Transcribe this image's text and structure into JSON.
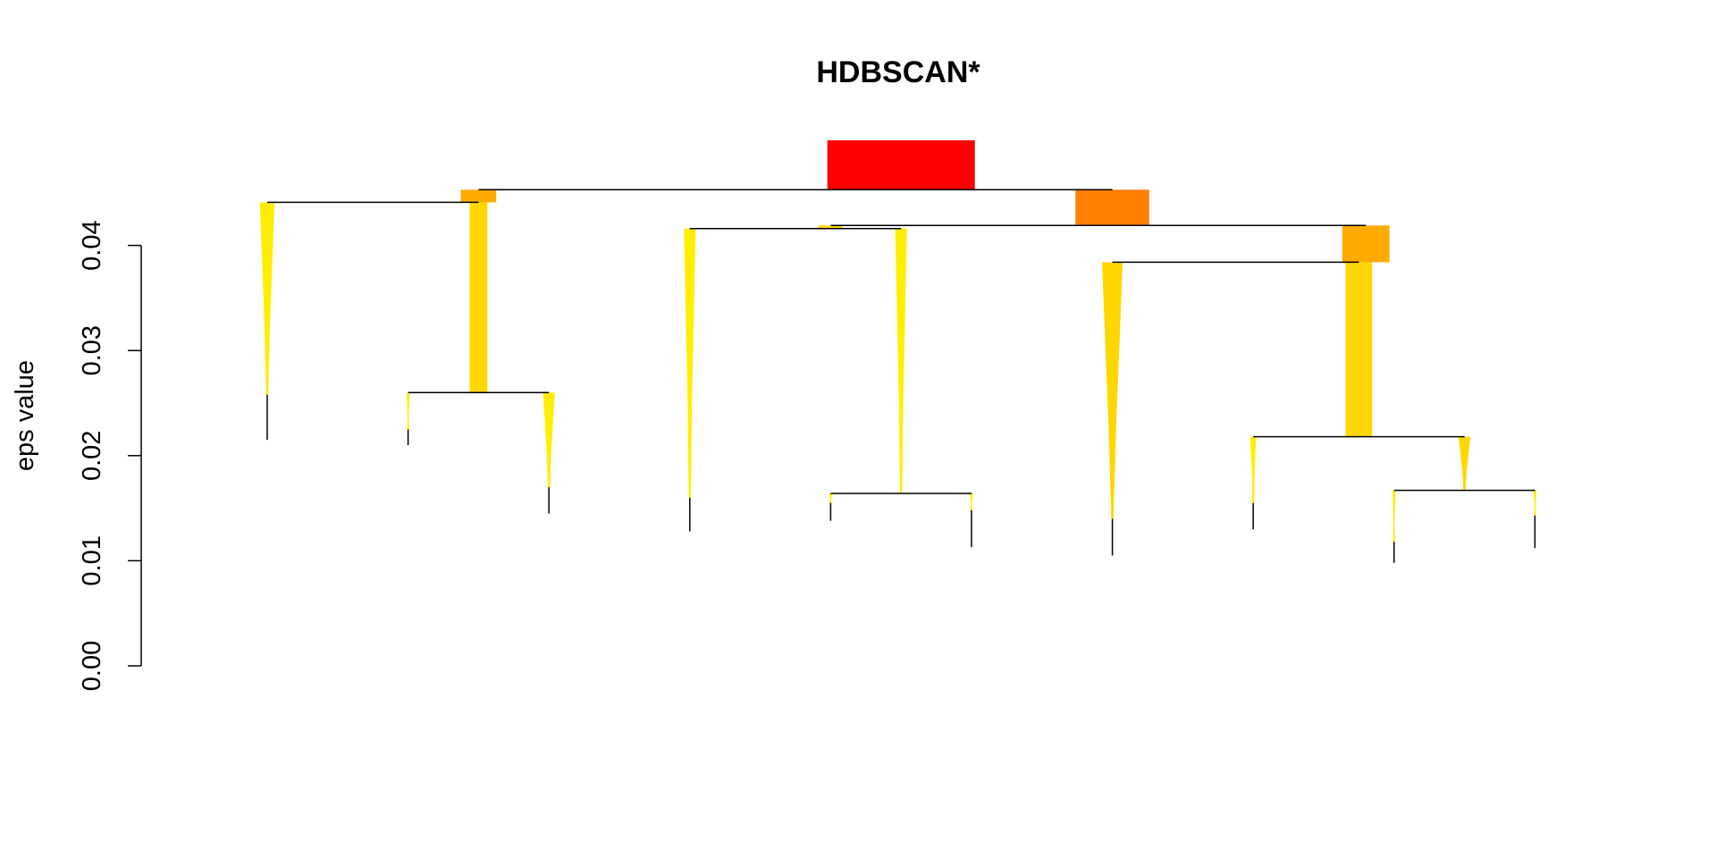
{
  "chart_data": {
    "type": "dendrogram",
    "title": "HDBSCAN*",
    "ylabel": "eps value",
    "ylim": [
      0,
      0.05
    ],
    "y_ticks": [
      "0.00",
      "0.01",
      "0.02",
      "0.03",
      "0.04"
    ],
    "y_tick_values": [
      0,
      0.01,
      0.02,
      0.03,
      0.04
    ],
    "grid": false,
    "colors": {
      "root": "#ff0000",
      "level1": "#ff8000",
      "level2": "#ffaa00",
      "leaf": "#ffd700",
      "leaf_light": "#ffee00",
      "line": "#000000"
    },
    "clusters": [
      {
        "id": "root",
        "x": 4.5,
        "eps_top": 0.05,
        "eps_split": 0.0453,
        "width": 0.5,
        "color": "#ff0000"
      },
      {
        "id": "A",
        "x": 1.5,
        "eps_top": 0.0453,
        "eps_split": 0.0441,
        "width": 0.12,
        "color": "#ffaa00"
      },
      {
        "id": "B",
        "x": 6.0,
        "eps_top": 0.0453,
        "eps_split": 0.0419,
        "width": 0.25,
        "color": "#ff8000"
      },
      {
        "id": "A1",
        "x": 0.0,
        "eps_top": 0.0441,
        "eps_split": 0.0258,
        "eps_end": 0.0215,
        "width": 0.05,
        "color": "#ffee00",
        "taper": true
      },
      {
        "id": "A2",
        "x": 1.5,
        "eps_top": 0.0441,
        "eps_split": 0.026,
        "width": 0.06,
        "color": "#ffd700"
      },
      {
        "id": "A2a",
        "x": 1.0,
        "eps_top": 0.026,
        "eps_split": 0.0225,
        "eps_end": 0.021,
        "width": 0.01,
        "color": "#ffee00",
        "taper": true
      },
      {
        "id": "A2b",
        "x": 2.0,
        "eps_top": 0.026,
        "eps_split": 0.017,
        "eps_end": 0.0145,
        "width": 0.04,
        "color": "#ffee00",
        "taper": true
      },
      {
        "id": "B1",
        "x": 4.0,
        "eps_top": 0.0419,
        "eps_split": 0.0416,
        "width": 0.08,
        "color": "#ffd700"
      },
      {
        "id": "B1a",
        "x": 3.0,
        "eps_top": 0.0416,
        "eps_split": 0.016,
        "eps_end": 0.0128,
        "width": 0.04,
        "color": "#ffee00",
        "taper": true
      },
      {
        "id": "B1b",
        "x": 4.5,
        "eps_top": 0.0416,
        "eps_split": 0.0164,
        "width": 0.04,
        "color": "#ffee00",
        "taper": true
      },
      {
        "id": "B1b1",
        "x": 4.0,
        "eps_top": 0.0164,
        "eps_split": 0.0155,
        "eps_end": 0.0138,
        "width": 0.01,
        "color": "#ffee00",
        "taper": true
      },
      {
        "id": "B1b2",
        "x": 5.0,
        "eps_top": 0.0164,
        "eps_split": 0.0148,
        "eps_end": 0.0113,
        "width": 0.01,
        "color": "#ffee00",
        "taper": true
      },
      {
        "id": "B2",
        "x": 7.8,
        "eps_top": 0.0419,
        "eps_split": 0.0384,
        "width": 0.16,
        "color": "#ffaa00"
      },
      {
        "id": "B2a",
        "x": 6.0,
        "eps_top": 0.0384,
        "eps_split": 0.014,
        "eps_end": 0.0105,
        "width": 0.07,
        "color": "#ffd700",
        "taper": true
      },
      {
        "id": "B2b",
        "x": 7.75,
        "eps_top": 0.0384,
        "eps_split": 0.0218,
        "width": 0.09,
        "color": "#ffd700"
      },
      {
        "id": "B2b1",
        "x": 7.0,
        "eps_top": 0.0218,
        "eps_split": 0.0155,
        "eps_end": 0.013,
        "width": 0.02,
        "color": "#ffee00",
        "taper": true
      },
      {
        "id": "B2b2",
        "x": 8.5,
        "eps_top": 0.0218,
        "eps_split": 0.0167,
        "width": 0.04,
        "color": "#ffd700",
        "taper": true
      },
      {
        "id": "B2b2a",
        "x": 8.0,
        "eps_top": 0.0167,
        "eps_split": 0.0118,
        "eps_end": 0.0098,
        "width": 0.01,
        "color": "#ffee00",
        "taper": true
      },
      {
        "id": "B2b2b",
        "x": 9.0,
        "eps_top": 0.0167,
        "eps_split": 0.0143,
        "eps_end": 0.0112,
        "width": 0.01,
        "color": "#ffee00",
        "taper": true
      }
    ],
    "merges": [
      {
        "parent": "root",
        "left": "A",
        "right": "B",
        "eps": 0.0453
      },
      {
        "parent": "A",
        "left": "A1",
        "right": "A2",
        "eps": 0.0441
      },
      {
        "parent": "A2",
        "left": "A2a",
        "right": "A2b",
        "eps": 0.026
      },
      {
        "parent": "B",
        "left": "B1",
        "right": "B2",
        "eps": 0.0419
      },
      {
        "parent": "B1",
        "left": "B1a",
        "right": "B1b",
        "eps": 0.0416
      },
      {
        "parent": "B1b",
        "left": "B1b1",
        "right": "B1b2",
        "eps": 0.0164
      },
      {
        "parent": "B2",
        "left": "B2a",
        "right": "B2b",
        "eps": 0.0384
      },
      {
        "parent": "B2b",
        "left": "B2b1",
        "right": "B2b2",
        "eps": 0.0218
      },
      {
        "parent": "B2b2",
        "left": "B2b2a",
        "right": "B2b2b",
        "eps": 0.0167
      }
    ]
  }
}
